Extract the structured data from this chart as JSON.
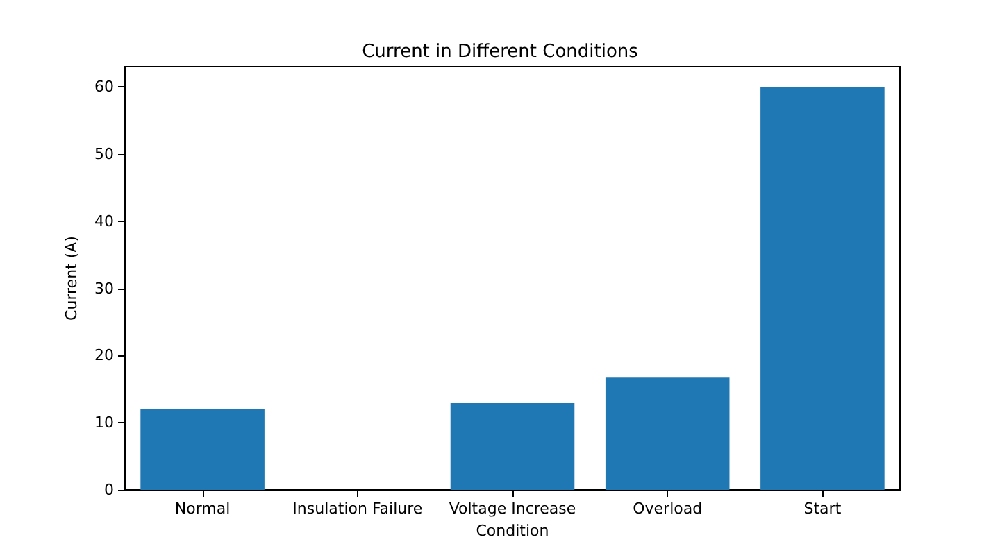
{
  "chart_data": {
    "type": "bar",
    "title": "Current in Different Conditions",
    "xlabel": "Condition",
    "ylabel": "Current (A)",
    "categories": [
      "Normal",
      "Insulation Failure",
      "Voltage Increase",
      "Overload",
      "Start"
    ],
    "values": [
      12,
      0,
      12.9,
      16.8,
      60
    ],
    "color": "#1f77b4",
    "ylim": [
      0,
      63
    ],
    "yticks": [
      0,
      10,
      20,
      30,
      40,
      50,
      60
    ],
    "grid": false
  }
}
